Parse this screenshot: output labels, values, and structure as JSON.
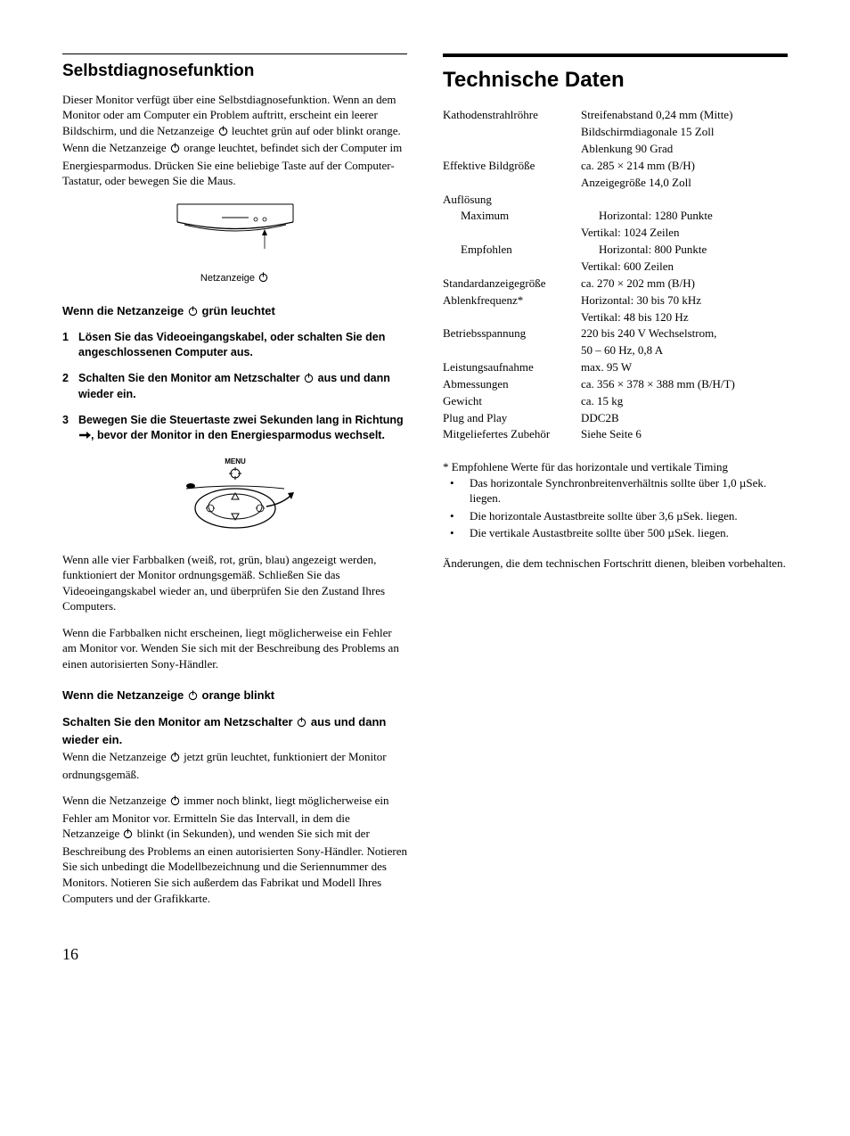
{
  "page_number": "16",
  "left": {
    "heading": "Selbstdiagnosefunktion",
    "intro_a": "Dieser Monitor verfügt über eine Selbstdiagnosefunktion. Wenn an dem Monitor oder am Computer ein Problem auftritt, erscheint ein leerer Bildschirm, und die Netzanzeige ",
    "intro_b": " leuchtet grün auf oder blinkt orange. Wenn die Netzanzeige ",
    "intro_c": " orange leuchtet, befindet sich der Computer im Energiesparmodus. Drücken Sie eine beliebige Taste auf der Computer-Tastatur, oder bewegen Sie die Maus.",
    "fig1_caption": "Netzanzeige ",
    "sub1_a": "Wenn die Netzanzeige ",
    "sub1_b": " grün leuchtet",
    "steps": [
      {
        "n": "1",
        "t": "Lösen Sie das Videoeingangskabel, oder schalten Sie den angeschlossenen Computer aus."
      },
      {
        "n": "2",
        "a": "Schalten Sie den Monitor am Netzschalter ",
        "b": " aus und dann wieder ein."
      },
      {
        "n": "3",
        "a": "Bewegen Sie die Steuertaste zwei Sekunden lang in Richtung ",
        "b": ", bevor der Monitor in den Energiesparmodus wechselt."
      }
    ],
    "menu_label": "MENU",
    "para2": "Wenn alle vier Farbbalken (weiß, rot, grün, blau) angezeigt werden, funktioniert der Monitor ordnungsgemäß. Schließen Sie das Videoeingangskabel wieder an, und überprüfen Sie den Zustand Ihres Computers.",
    "para3": "Wenn die Farbbalken nicht erscheinen, liegt möglicherweise ein Fehler am Monitor vor. Wenden Sie sich mit der Beschreibung des Problems an einen autorisierten Sony-Händler.",
    "sub2_a": "Wenn die Netzanzeige ",
    "sub2_b": " orange blinkt",
    "sub3_a": "Schalten Sie den Monitor am Netzschalter ",
    "sub3_b": " aus und dann wieder ein.",
    "para4_a": "Wenn die Netzanzeige ",
    "para4_b": " jetzt grün leuchtet, funktioniert der Monitor ordnungsgemäß.",
    "para5_a": "Wenn die Netzanzeige ",
    "para5_b": " immer noch blinkt, liegt möglicherweise ein Fehler am Monitor vor. Ermitteln Sie das Intervall, in dem die Netzanzeige ",
    "para5_c": " blinkt (in Sekunden), und wenden Sie sich mit der Beschreibung des Problems an einen autorisierten Sony-Händler. Notieren Sie sich unbedingt die Modellbezeichnung und die Seriennummer des Monitors. Notieren Sie sich außerdem das Fabrikat und Modell Ihres Computers und der Grafikkarte."
  },
  "right": {
    "heading": "Technische Daten",
    "specs": [
      {
        "label": "Kathodenstrahlröhre",
        "value": "Streifenabstand 0,24 mm (Mitte)"
      },
      {
        "label": "",
        "value": "Bildschirmdiagonale 15 Zoll"
      },
      {
        "label": "",
        "value": "Ablenkung 90 Grad"
      },
      {
        "label": "Effektive Bildgröße",
        "value": "ca. 285 × 214 mm (B/H)"
      },
      {
        "label": "",
        "value": "Anzeigegröße 14,0 Zoll"
      },
      {
        "label": "Auflösung",
        "value": ""
      },
      {
        "label": "Maximum",
        "indent": true,
        "value": "Horizontal: 1280 Punkte"
      },
      {
        "label": "",
        "value": "Vertikal: 1024 Zeilen"
      },
      {
        "label": "Empfohlen",
        "indent": true,
        "value": "Horizontal: 800 Punkte"
      },
      {
        "label": "",
        "value": "Vertikal: 600 Zeilen"
      },
      {
        "label": "Standardanzeigegröße",
        "value": "ca. 270 × 202 mm (B/H)"
      },
      {
        "label": "Ablenkfrequenz*",
        "value": "Horizontal: 30 bis 70 kHz"
      },
      {
        "label": "",
        "value": "Vertikal: 48 bis 120 Hz"
      },
      {
        "label": "Betriebsspannung",
        "value": "220 bis 240 V Wechselstrom,"
      },
      {
        "label": "",
        "value": "50 – 60 Hz, 0,8 A"
      },
      {
        "label": "Leistungsaufnahme",
        "value": "max. 95 W"
      },
      {
        "label": "Abmessungen",
        "value": "ca. 356 × 378 × 388 mm (B/H/T)"
      },
      {
        "label": "Gewicht",
        "value": "ca. 15 kg"
      },
      {
        "label": "Plug and Play",
        "value": "DDC2B"
      },
      {
        "label": "Mitgeliefertes Zubehör",
        "value": "Siehe Seite 6"
      }
    ],
    "footnote_lead": "*  Empfohlene Werte für das horizontale und vertikale Timing",
    "footnotes": [
      "Das horizontale Synchronbreitenverhältnis sollte über 1,0 µSek. liegen.",
      "Die horizontale Austastbreite sollte über 3,6 µSek. liegen.",
      "Die vertikale Austastbreite sollte über 500 µSek. liegen."
    ],
    "closing": "Änderungen, die dem technischen Fortschritt dienen, bleiben vorbehalten."
  }
}
